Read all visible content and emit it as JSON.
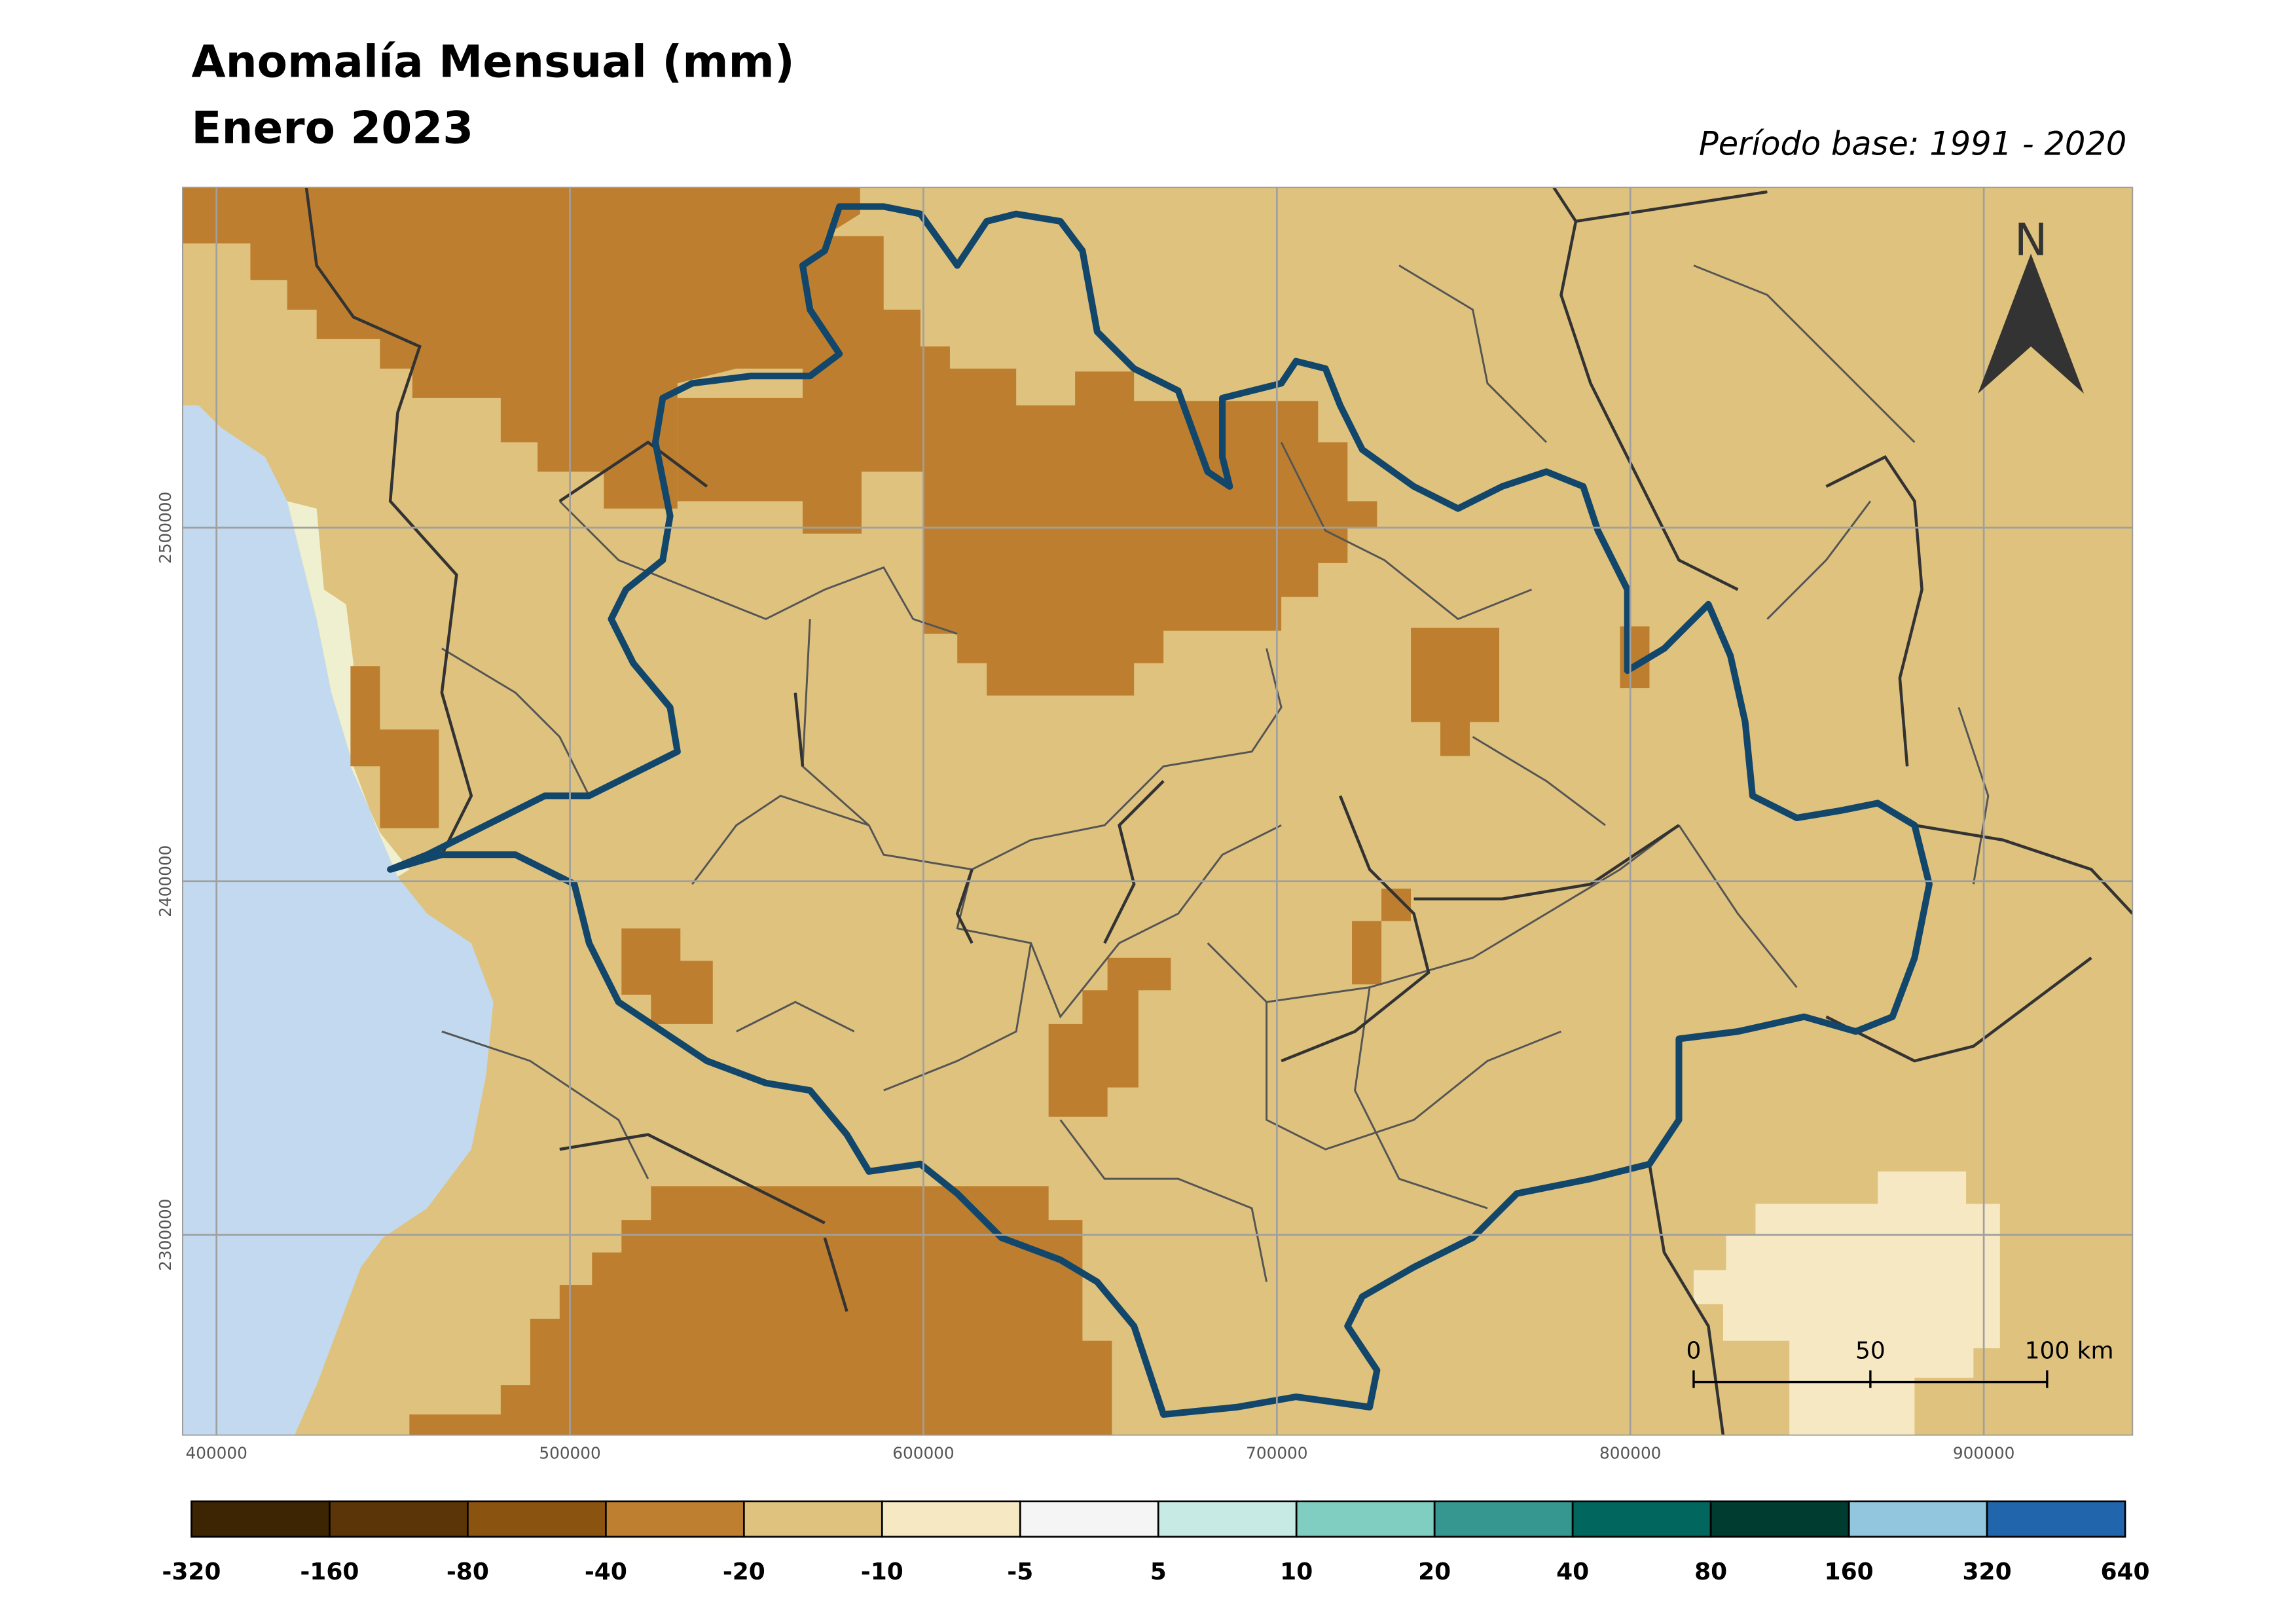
{
  "header": {
    "title": "Anomalía Mensual (mm)",
    "subtitle": "Enero 2023",
    "base_period": "Período base: 1991 - 2020"
  },
  "map": {
    "x_ticks": [
      400000,
      500000,
      600000,
      700000,
      800000,
      900000
    ],
    "y_ticks": [
      2500000,
      2400000,
      2300000
    ],
    "north_label": "N",
    "scale_bar": {
      "labels": [
        "0",
        "50",
        "100 km"
      ]
    }
  },
  "legend": {
    "colors": [
      "#3d2504",
      "#5b3408",
      "#8b5310",
      "#be7f30",
      "#dfc27d",
      "#f6e8c3",
      "#f5f5f5",
      "#c7eae5",
      "#80cdc1",
      "#35978f",
      "#01665e",
      "#003c30",
      "#92c5de",
      "#2166ac"
    ],
    "labels": [
      -320,
      -160,
      -80,
      -40,
      -20,
      -10,
      -5,
      5,
      10,
      20,
      40,
      80,
      160,
      320,
      640
    ]
  }
}
